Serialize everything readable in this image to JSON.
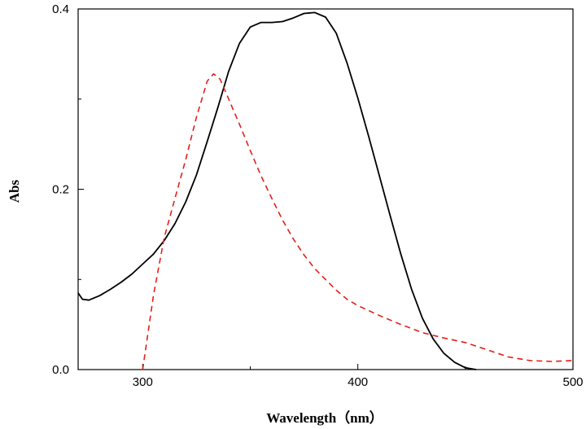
{
  "chart_data": {
    "type": "line",
    "xlabel": "Wavelength（nm）",
    "ylabel": "Abs",
    "xlim": [
      270,
      500
    ],
    "ylim": [
      0,
      0.4
    ],
    "x_ticks": [
      300,
      400,
      500
    ],
    "y_ticks": [
      0.0,
      0.2,
      0.4
    ],
    "y_tick_labels": [
      "0.0",
      "0.2",
      "0.4"
    ],
    "grid": false,
    "legend": "none",
    "series": [
      {
        "color": "#000000",
        "dash": "solid",
        "points": [
          [
            270,
            0.085
          ],
          [
            272,
            0.078
          ],
          [
            275,
            0.077
          ],
          [
            280,
            0.082
          ],
          [
            285,
            0.089
          ],
          [
            290,
            0.097
          ],
          [
            295,
            0.106
          ],
          [
            300,
            0.117
          ],
          [
            305,
            0.128
          ],
          [
            310,
            0.143
          ],
          [
            315,
            0.162
          ],
          [
            320,
            0.186
          ],
          [
            325,
            0.216
          ],
          [
            330,
            0.253
          ],
          [
            335,
            0.291
          ],
          [
            340,
            0.331
          ],
          [
            345,
            0.362
          ],
          [
            350,
            0.38
          ],
          [
            355,
            0.385
          ],
          [
            360,
            0.385
          ],
          [
            365,
            0.386
          ],
          [
            370,
            0.39
          ],
          [
            375,
            0.395
          ],
          [
            380,
            0.396
          ],
          [
            385,
            0.391
          ],
          [
            390,
            0.373
          ],
          [
            395,
            0.34
          ],
          [
            400,
            0.301
          ],
          [
            405,
            0.259
          ],
          [
            410,
            0.215
          ],
          [
            415,
            0.171
          ],
          [
            420,
            0.128
          ],
          [
            425,
            0.089
          ],
          [
            430,
            0.057
          ],
          [
            435,
            0.034
          ],
          [
            440,
            0.018
          ],
          [
            445,
            0.008
          ],
          [
            450,
            0.002
          ],
          [
            455,
            0.0
          ]
        ]
      },
      {
        "color": "#e3201b",
        "dash": "dashed",
        "points": [
          [
            300,
            0.0
          ],
          [
            305,
            0.082
          ],
          [
            310,
            0.146
          ],
          [
            315,
            0.19
          ],
          [
            320,
            0.233
          ],
          [
            325,
            0.28
          ],
          [
            330,
            0.32
          ],
          [
            333,
            0.328
          ],
          [
            336,
            0.322
          ],
          [
            340,
            0.3
          ],
          [
            345,
            0.272
          ],
          [
            350,
            0.243
          ],
          [
            355,
            0.215
          ],
          [
            360,
            0.19
          ],
          [
            365,
            0.166
          ],
          [
            370,
            0.145
          ],
          [
            375,
            0.127
          ],
          [
            380,
            0.112
          ],
          [
            385,
            0.1
          ],
          [
            390,
            0.088
          ],
          [
            395,
            0.078
          ],
          [
            400,
            0.071
          ],
          [
            410,
            0.06
          ],
          [
            420,
            0.05
          ],
          [
            430,
            0.041
          ],
          [
            440,
            0.035
          ],
          [
            450,
            0.03
          ],
          [
            460,
            0.022
          ],
          [
            470,
            0.014
          ],
          [
            480,
            0.01
          ],
          [
            490,
            0.009
          ],
          [
            500,
            0.01
          ]
        ]
      }
    ]
  }
}
